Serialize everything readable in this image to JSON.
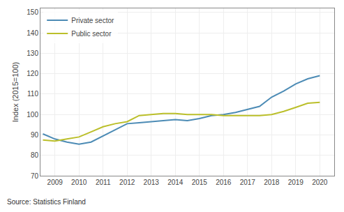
{
  "chart_data": {
    "type": "line",
    "x": [
      2008.5,
      2009,
      2009.5,
      2010,
      2010.5,
      2011,
      2011.5,
      2012,
      2012.5,
      2013,
      2013.5,
      2014,
      2014.5,
      2015,
      2015.5,
      2016,
      2016.5,
      2017,
      2017.5,
      2018,
      2018.5,
      2019,
      2019.5,
      2020
    ],
    "series": [
      {
        "name": "Private sector",
        "color": "#4C8BB5",
        "values": [
          90.5,
          88.0,
          86.5,
          85.5,
          86.5,
          89.5,
          92.5,
          95.5,
          96.0,
          96.5,
          97.0,
          97.5,
          97.0,
          98.0,
          99.5,
          100.0,
          101.0,
          102.5,
          104.0,
          108.5,
          111.5,
          115.0,
          117.5,
          119.0
        ]
      },
      {
        "name": "Public sector",
        "color": "#BBBF2A",
        "values": [
          87.5,
          87.0,
          88.0,
          89.0,
          91.5,
          94.0,
          95.5,
          96.5,
          99.5,
          100.0,
          100.5,
          100.5,
          100.0,
          100.0,
          100.0,
          99.5,
          99.5,
          99.5,
          99.5,
          100.0,
          101.5,
          103.5,
          105.5,
          106.0
        ]
      }
    ],
    "ylabel": "Index (2015=100)",
    "xlim": [
      2008.4,
      2020.6
    ],
    "ylim": [
      70,
      152
    ],
    "xticks": [
      2009,
      2010,
      2011,
      2012,
      2013,
      2014,
      2015,
      2016,
      2017,
      2018,
      2019,
      2020
    ],
    "yticks": [
      70,
      80,
      90,
      100,
      110,
      120,
      130,
      140,
      150
    ],
    "grid": true,
    "legend": "upper left",
    "annotations": [
      "Source: Statistics Finland"
    ]
  }
}
